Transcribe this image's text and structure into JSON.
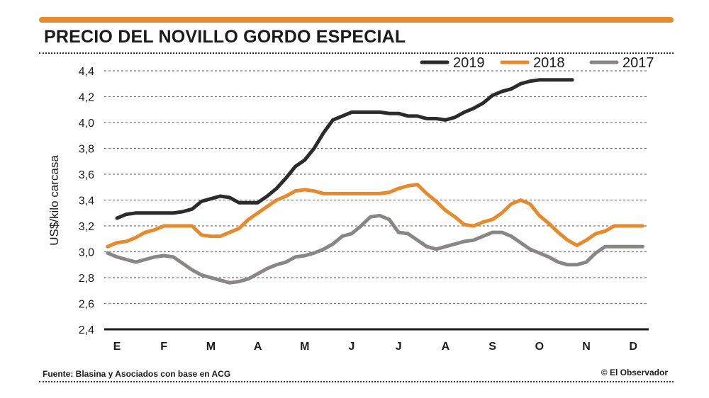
{
  "header": {
    "title": "PRECIO DEL NOVILLO GORDO ESPECIAL",
    "accent_color": "#E8892B"
  },
  "footer": {
    "source": "Fuente: Blasina y Asociados con base en ACG",
    "credit": "© El Observador"
  },
  "chart_data": {
    "type": "line",
    "title": "PRECIO DEL NOVILLO GORDO ESPECIAL",
    "xlabel": "",
    "ylabel": "US$/kilo carcasa",
    "ylim": [
      2.4,
      4.4
    ],
    "yticks": [
      "2,4",
      "2,6",
      "2,8",
      "3,0",
      "3,2",
      "3,4",
      "3,6",
      "3,8",
      "4,0",
      "4,2",
      "4,4"
    ],
    "categories": [
      "E",
      "F",
      "M",
      "A",
      "M",
      "J",
      "J",
      "A",
      "S",
      "O",
      "N",
      "D"
    ],
    "grid": "horizontal dotted",
    "legend_position": "top-right",
    "series": [
      {
        "name": "2019",
        "color": "#2b2b2b",
        "x": [
          0,
          0.2,
          0.4,
          0.6,
          0.8,
          1.0,
          1.2,
          1.4,
          1.6,
          1.8,
          2.0,
          2.2,
          2.4,
          2.6,
          2.8,
          3.0,
          3.2,
          3.4,
          3.6,
          3.8,
          4.0,
          4.2,
          4.4,
          4.6,
          4.8,
          5.0,
          5.2,
          5.4,
          5.6,
          5.8,
          6.0,
          6.2,
          6.4,
          6.6,
          6.8,
          7.0,
          7.2,
          7.4,
          7.6,
          7.8,
          8.0,
          8.2,
          8.4,
          8.6,
          8.8,
          9.0,
          9.2,
          9.4,
          9.6,
          9.7
        ],
        "values": [
          3.26,
          3.29,
          3.3,
          3.3,
          3.3,
          3.3,
          3.3,
          3.31,
          3.33,
          3.39,
          3.41,
          3.43,
          3.42,
          3.38,
          3.38,
          3.38,
          3.43,
          3.49,
          3.57,
          3.66,
          3.71,
          3.8,
          3.92,
          4.02,
          4.05,
          4.08,
          4.08,
          4.08,
          4.08,
          4.07,
          4.07,
          4.05,
          4.05,
          4.03,
          4.03,
          4.02,
          4.04,
          4.08,
          4.11,
          4.15,
          4.21,
          4.24,
          4.26,
          4.3,
          4.32,
          4.33,
          4.33,
          4.33,
          4.33,
          4.33
        ]
      },
      {
        "name": "2018",
        "color": "#E8892B",
        "x": [
          -0.2,
          0,
          0.2,
          0.4,
          0.6,
          0.8,
          1.0,
          1.2,
          1.4,
          1.6,
          1.8,
          2.0,
          2.2,
          2.4,
          2.6,
          2.8,
          3.0,
          3.2,
          3.4,
          3.6,
          3.8,
          4.0,
          4.2,
          4.4,
          4.6,
          4.8,
          5.0,
          5.2,
          5.4,
          5.6,
          5.8,
          6.0,
          6.2,
          6.4,
          6.6,
          6.8,
          7.0,
          7.2,
          7.4,
          7.6,
          7.8,
          8.0,
          8.2,
          8.4,
          8.6,
          8.8,
          9.0,
          9.2,
          9.4,
          9.6,
          9.8,
          10.0,
          10.2,
          10.4,
          10.6,
          10.8,
          11.0,
          11.2
        ],
        "values": [
          3.04,
          3.07,
          3.08,
          3.11,
          3.15,
          3.17,
          3.2,
          3.2,
          3.2,
          3.2,
          3.13,
          3.12,
          3.12,
          3.15,
          3.18,
          3.25,
          3.3,
          3.35,
          3.4,
          3.43,
          3.47,
          3.48,
          3.47,
          3.45,
          3.45,
          3.45,
          3.45,
          3.45,
          3.45,
          3.45,
          3.46,
          3.49,
          3.51,
          3.52,
          3.45,
          3.39,
          3.32,
          3.27,
          3.21,
          3.2,
          3.23,
          3.25,
          3.3,
          3.37,
          3.4,
          3.37,
          3.28,
          3.22,
          3.15,
          3.09,
          3.05,
          3.09,
          3.14,
          3.16,
          3.2,
          3.2,
          3.2,
          3.2
        ]
      },
      {
        "name": "2017",
        "color": "#8c8585",
        "x": [
          -0.2,
          0,
          0.2,
          0.4,
          0.6,
          0.8,
          1.0,
          1.2,
          1.4,
          1.6,
          1.8,
          2.0,
          2.2,
          2.4,
          2.6,
          2.8,
          3.0,
          3.2,
          3.4,
          3.6,
          3.8,
          4.0,
          4.2,
          4.4,
          4.6,
          4.8,
          5.0,
          5.2,
          5.4,
          5.6,
          5.8,
          6.0,
          6.2,
          6.4,
          6.6,
          6.8,
          7.0,
          7.2,
          7.4,
          7.6,
          7.8,
          8.0,
          8.2,
          8.4,
          8.6,
          8.8,
          9.0,
          9.2,
          9.4,
          9.6,
          9.8,
          10.0,
          10.2,
          10.4,
          10.6,
          10.8,
          11.0,
          11.2
        ],
        "values": [
          2.99,
          2.96,
          2.94,
          2.92,
          2.94,
          2.96,
          2.97,
          2.96,
          2.91,
          2.86,
          2.82,
          2.8,
          2.78,
          2.76,
          2.77,
          2.79,
          2.83,
          2.87,
          2.9,
          2.92,
          2.96,
          2.97,
          2.99,
          3.02,
          3.06,
          3.12,
          3.14,
          3.2,
          3.27,
          3.28,
          3.25,
          3.15,
          3.14,
          3.09,
          3.04,
          3.02,
          3.04,
          3.06,
          3.08,
          3.09,
          3.12,
          3.15,
          3.15,
          3.12,
          3.07,
          3.02,
          2.99,
          2.96,
          2.92,
          2.9,
          2.9,
          2.92,
          2.99,
          3.04,
          3.04,
          3.04,
          3.04,
          3.04
        ]
      }
    ]
  }
}
